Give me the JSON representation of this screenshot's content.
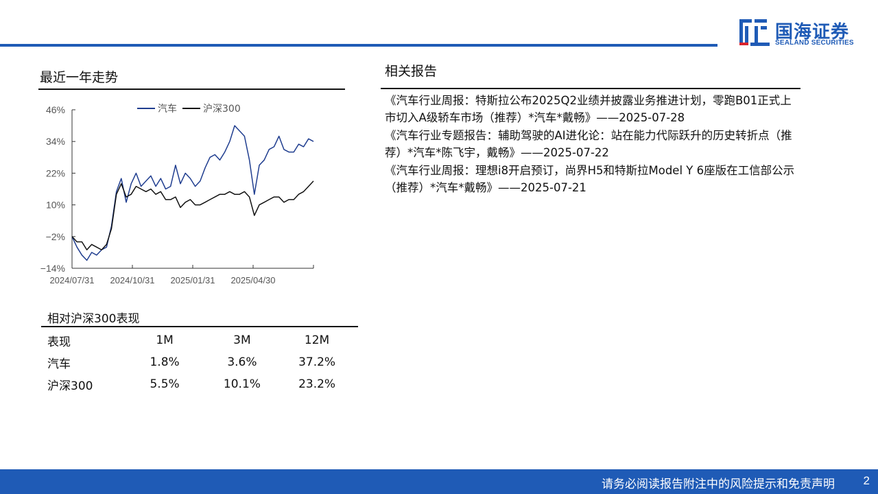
{
  "header": {
    "logo_cn": "国海证券",
    "logo_en": "SEALAND SECURITIES",
    "brand_color": "#1f5bb6"
  },
  "trend": {
    "title": "最近一年走势"
  },
  "chart_data": {
    "type": "line",
    "x_ticks": [
      "2024/07/31",
      "2024/10/31",
      "2025/01/31",
      "2025/04/30"
    ],
    "y_ticks": [
      "46%",
      "34%",
      "22%",
      "10%",
      "-2%",
      "-14%"
    ],
    "ylim": [
      -14,
      46
    ],
    "grid": false,
    "legend": "top",
    "series": [
      {
        "name": "汽车",
        "color": "#1f3d8f",
        "values": [
          -2,
          -6,
          -9,
          -11,
          -8,
          -9,
          -7,
          -6,
          2,
          15,
          20,
          11,
          18,
          22,
          17,
          19,
          21,
          17,
          20,
          16,
          17,
          25,
          18,
          22,
          20,
          17,
          19,
          24,
          28,
          29,
          27,
          30,
          34,
          40,
          38,
          36,
          27,
          14,
          25,
          27,
          31,
          32,
          36,
          31,
          30,
          30,
          33,
          32,
          35,
          34
        ]
      },
      {
        "name": "沪深300",
        "color": "#111111",
        "values": [
          -2,
          -4,
          -4,
          -7,
          -5,
          -6,
          -7,
          -5,
          1,
          14,
          18,
          13,
          14,
          17,
          16,
          15,
          16,
          14,
          15,
          12,
          12,
          13,
          9,
          11,
          12,
          10,
          10,
          11,
          12,
          13,
          14,
          14,
          15,
          14,
          14,
          15,
          13,
          6,
          10,
          11,
          12,
          13,
          13,
          11,
          12,
          12,
          14,
          15,
          17,
          19
        ]
      }
    ]
  },
  "perf": {
    "title": "相对沪深300表现",
    "header": [
      "表现",
      "1M",
      "3M",
      "12M"
    ],
    "rows": [
      [
        "汽车",
        "1.8%",
        "3.6%",
        "37.2%"
      ],
      [
        "沪深300",
        "5.5%",
        "10.1%",
        "23.2%"
      ]
    ]
  },
  "reports": {
    "title": "相关报告",
    "items": [
      "《汽车行业周报：特斯拉公布2025Q2业绩并披露业务推进计划，零跑B01正式上市切入A级轿车市场（推荐）*汽车*戴畅》——2025-07-28",
      "《汽车行业专题报告：辅助驾驶的AI进化论：站在能力代际跃升的历史转折点（推荐）*汽车*陈飞宇，戴畅》——2025-07-22",
      "《汽车行业周报：理想i8开启预订，尚界H5和特斯拉Model Y 6座版在工信部公示（推荐）*汽车*戴畅》——2025-07-21"
    ]
  },
  "footer": {
    "note": "请务必阅读报告附注中的风险提示和免责声明",
    "page": "2"
  }
}
